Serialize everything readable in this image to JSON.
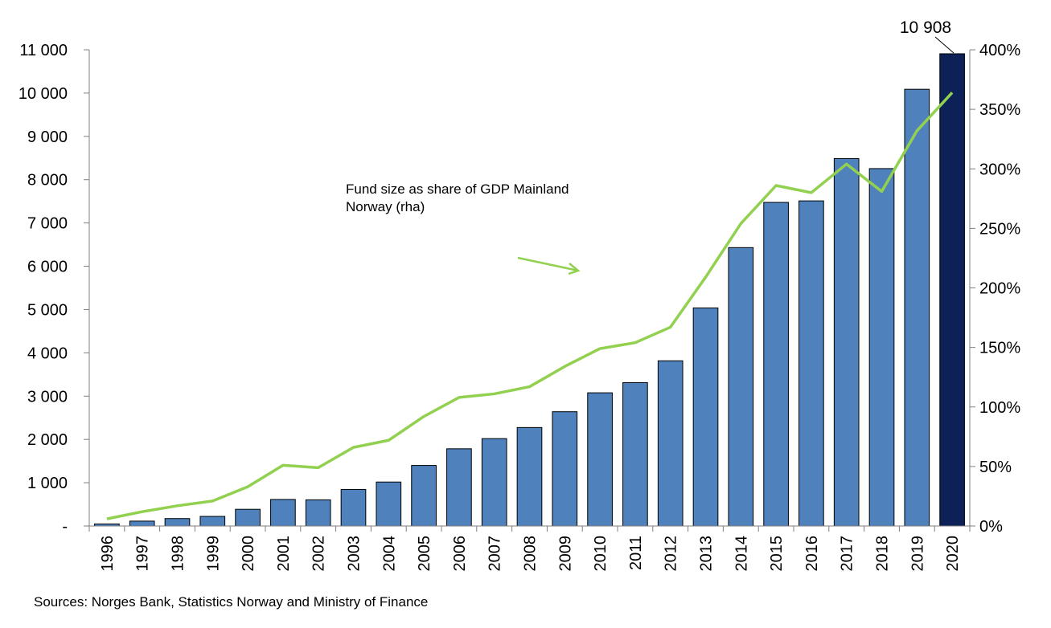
{
  "chart_data": {
    "type": "bar",
    "categories": [
      "1996",
      "1997",
      "1998",
      "1999",
      "2000",
      "2001",
      "2002",
      "2003",
      "2004",
      "2005",
      "2006",
      "2007",
      "2008",
      "2009",
      "2010",
      "2011",
      "2012",
      "2013",
      "2014",
      "2015",
      "2016",
      "2017",
      "2018",
      "2019",
      "2020"
    ],
    "series": [
      {
        "type": "bar",
        "axis": "left",
        "color": "#4f81bd",
        "highlight": {
          "index": 24,
          "color": "#0b2158"
        },
        "values": [
          48,
          113,
          172,
          222,
          386,
          614,
          605,
          845,
          1016,
          1399,
          1784,
          2019,
          2275,
          2640,
          3077,
          3312,
          3816,
          5038,
          6431,
          7475,
          7510,
          8488,
          8256,
          10088,
          10908
        ]
      },
      {
        "type": "line",
        "axis": "right",
        "color": "#92d050",
        "values": [
          6,
          12,
          17,
          21,
          33,
          51,
          49,
          66,
          72,
          92,
          108,
          111,
          117,
          134,
          149,
          154,
          167,
          209,
          254,
          286,
          280,
          304,
          281,
          332,
          364
        ]
      }
    ],
    "y_left": {
      "min": 0,
      "max": 11000,
      "step": 1000,
      "tick_labels": [
        "-",
        "1 000",
        "2 000",
        "3 000",
        "4 000",
        "5 000",
        "6 000",
        "7 000",
        "8 000",
        "9 000",
        "10 000",
        "11 000"
      ]
    },
    "y_right": {
      "min": 0,
      "max": 400,
      "step": 50,
      "tick_labels": [
        "0%",
        "50%",
        "100%",
        "150%",
        "200%",
        "250%",
        "300%",
        "350%",
        "400%"
      ]
    },
    "annotation": {
      "lines": [
        "Fund size as share of GDP Mainland",
        "Norway (rha)"
      ]
    },
    "callout": {
      "label": "10 908",
      "index": 24
    },
    "grid": false,
    "legend": "none"
  },
  "source": "Sources: Norges Bank, Statistics Norway and Ministry of Finance"
}
